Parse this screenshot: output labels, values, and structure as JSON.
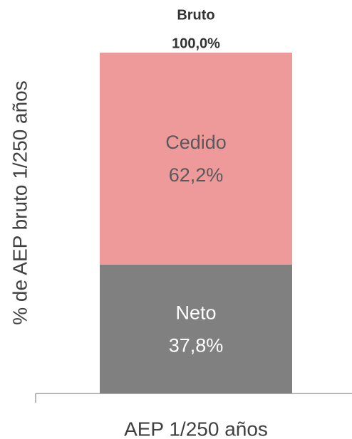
{
  "chart_data": {
    "type": "stacked_bar",
    "categories": [
      "AEP 1/250 años"
    ],
    "ylabel": "% de AEP bruto  1/250 años",
    "ylim": [
      0,
      100
    ],
    "series": [
      {
        "name": "Neto",
        "color": "#808080",
        "label_color": "#ffffff",
        "values": [
          37.8
        ],
        "value_labels": [
          "37,8%"
        ]
      },
      {
        "name": "Cedido",
        "color": "#ef9a9a",
        "label_color": "#595959",
        "values": [
          62.2
        ],
        "value_labels": [
          "62,2%"
        ]
      }
    ],
    "total_name": "Bruto",
    "total": 100,
    "total_label": "100,0%"
  }
}
